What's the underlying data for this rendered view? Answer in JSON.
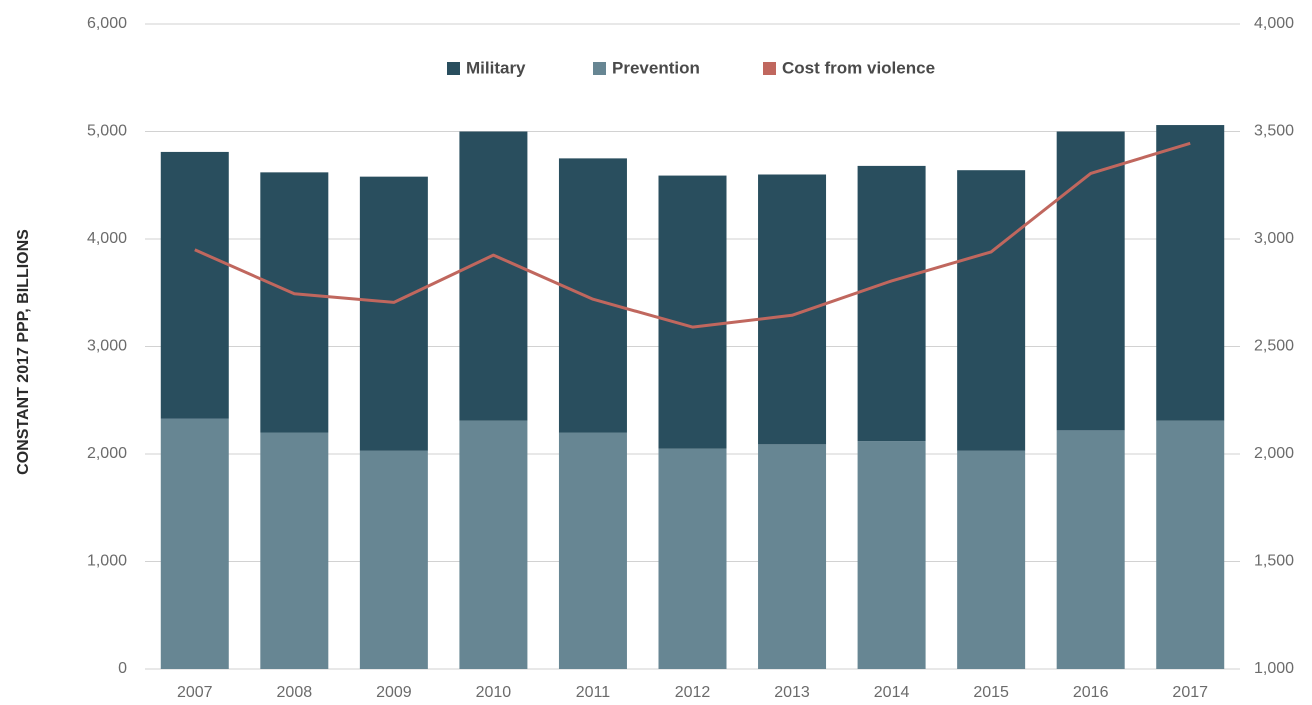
{
  "chart_data": {
    "type": "bar",
    "stacked": true,
    "categories": [
      "2007",
      "2008",
      "2009",
      "2010",
      "2011",
      "2012",
      "2013",
      "2014",
      "2015",
      "2016",
      "2017"
    ],
    "series": [
      {
        "name": "Military",
        "type": "bar",
        "axis": "left",
        "stack_position": "top",
        "color": "#294E5E",
        "values": [
          2480,
          2420,
          2550,
          2690,
          2550,
          2540,
          2510,
          2560,
          2610,
          2780,
          2750
        ]
      },
      {
        "name": "Prevention",
        "type": "bar",
        "axis": "left",
        "stack_position": "bottom",
        "color": "#678693",
        "values": [
          2330,
          2200,
          2030,
          2310,
          2200,
          2050,
          2090,
          2120,
          2030,
          2220,
          2310
        ]
      },
      {
        "name": "Cost from violence",
        "type": "line",
        "axis": "right",
        "color": "#C0675E",
        "values": [
          2950,
          2745,
          2705,
          2925,
          2720,
          2590,
          2645,
          2805,
          2940,
          3305,
          3445
        ]
      }
    ],
    "left_axis": {
      "label": "CONSTANT 2017 PPP, BILLIONS",
      "min": 0,
      "max": 6000,
      "ticks": [
        "0",
        "1,000",
        "2,000",
        "3,000",
        "4,000",
        "5,000",
        "6,000"
      ]
    },
    "right_axis": {
      "label": "",
      "min": 1000,
      "max": 4000,
      "ticks": [
        "1,000",
        "1,500",
        "2,000",
        "2,500",
        "3,000",
        "3,500",
        "4,000"
      ]
    },
    "title": "",
    "grid": true,
    "legend": {
      "position": "top-center",
      "entries": [
        "Military",
        "Prevention",
        "Cost from violence"
      ]
    }
  }
}
